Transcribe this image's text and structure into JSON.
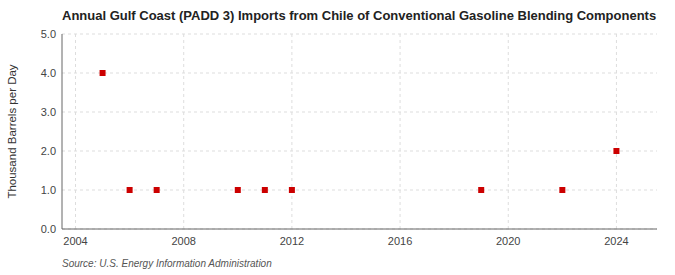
{
  "chart_data": {
    "type": "scatter",
    "title": "Annual Gulf Coast (PADD 3) Imports from Chile of Conventional Gasoline Blending Components",
    "y_label": "Thousand Barrels per Day",
    "source": "Source: U.S. Energy Information Administration",
    "x": [
      2005,
      2006,
      2007,
      2010,
      2011,
      2012,
      2019,
      2022,
      2024
    ],
    "values": [
      4.0,
      1.0,
      1.0,
      1.0,
      1.0,
      1.0,
      1.0,
      1.0,
      2.0
    ],
    "color": "#cc0000",
    "marker": "square",
    "xlim": [
      2003.5,
      2025.5
    ],
    "ylim": [
      0.0,
      5.0
    ],
    "xticks": [
      2004,
      2008,
      2012,
      2016,
      2020,
      2024
    ],
    "yticks": [
      {
        "value": 0.0,
        "label": "0.0"
      },
      {
        "value": 1.0,
        "label": "1.0"
      },
      {
        "value": 2.0,
        "label": "2.0"
      },
      {
        "value": 3.0,
        "label": "3.0"
      },
      {
        "value": 4.0,
        "label": "4.0"
      },
      {
        "value": 5.0,
        "label": "5.0"
      }
    ],
    "grid": true
  }
}
